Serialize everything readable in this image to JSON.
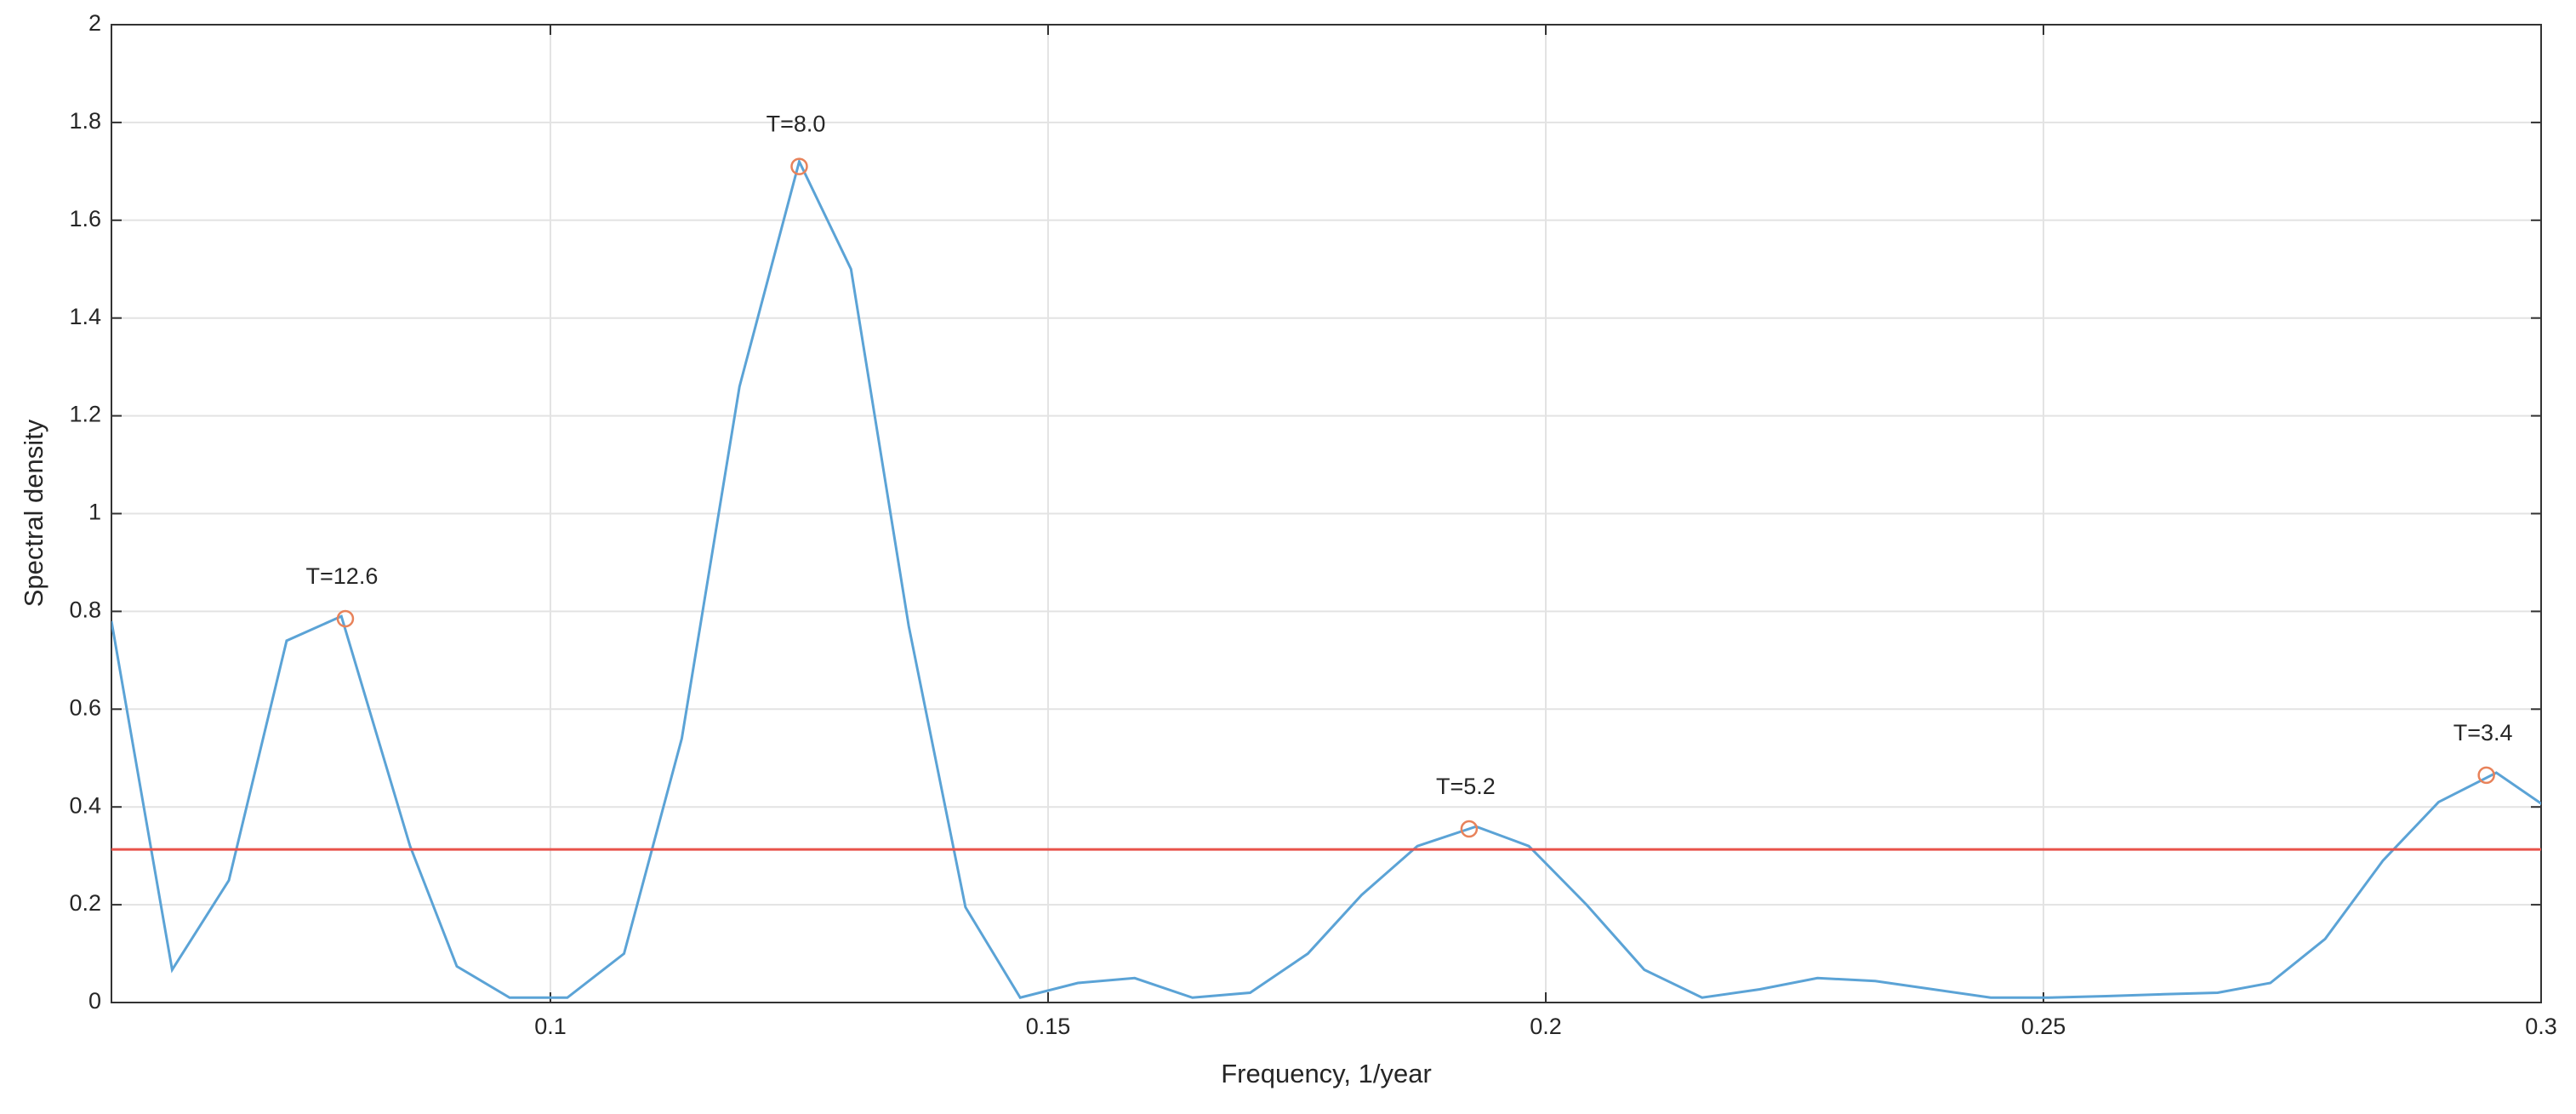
{
  "chart_data": {
    "type": "line",
    "x_label": "Frequency, 1/year",
    "y_label": "Spectral density",
    "x": [
      0.0559,
      0.062,
      0.0677,
      0.0735,
      0.079,
      0.0859,
      0.0906,
      0.0959,
      0.1017,
      0.1074,
      0.1132,
      0.119,
      0.125,
      0.1302,
      0.136,
      0.1417,
      0.1472,
      0.153,
      0.1587,
      0.1645,
      0.1703,
      0.1761,
      0.1815,
      0.1871,
      0.193,
      0.1983,
      0.2041,
      0.2099,
      0.2157,
      0.2215,
      0.2273,
      0.2331,
      0.2389,
      0.2447,
      0.2505,
      0.2563,
      0.2621,
      0.2675,
      0.2728,
      0.2783,
      0.2841,
      0.2897,
      0.2955,
      0.3005
    ],
    "series": [
      {
        "color": "#5ba3d6",
        "values": [
          0.78,
          0.067,
          0.25,
          0.74,
          0.79,
          0.32,
          0.074,
          0.01,
          0.01,
          0.1,
          0.54,
          1.26,
          1.72,
          1.5,
          0.77,
          0.195,
          0.01,
          0.04,
          0.05,
          0.01,
          0.02,
          0.1,
          0.22,
          0.32,
          0.36,
          0.32,
          0.2,
          0.067,
          0.01,
          0.027,
          0.05,
          0.044,
          0.027,
          0.01,
          0.01,
          0.013,
          0.017,
          0.02,
          0.04,
          0.13,
          0.29,
          0.41,
          0.47,
          0.4
        ]
      }
    ],
    "threshold": {
      "value": 0.313,
      "color": "#e8524a"
    },
    "peaks": {
      "color": "#e8825a",
      "x": [
        0.0794,
        0.125,
        0.1923,
        0.2945
      ],
      "values": [
        0.785,
        1.71,
        0.355,
        0.465
      ],
      "labels": [
        "T=12.6",
        "T=8.0",
        "T=5.2",
        "T=3.4"
      ]
    },
    "xlim": [
      0.0559,
      0.3
    ],
    "ylim": [
      0,
      2
    ],
    "xticks": [
      0.1,
      0.15,
      0.2,
      0.25,
      0.3
    ],
    "yticks": [
      0,
      0.2,
      0.4,
      0.6,
      0.8,
      1,
      1.2,
      1.4,
      1.6,
      1.8,
      2
    ],
    "grid": true
  }
}
